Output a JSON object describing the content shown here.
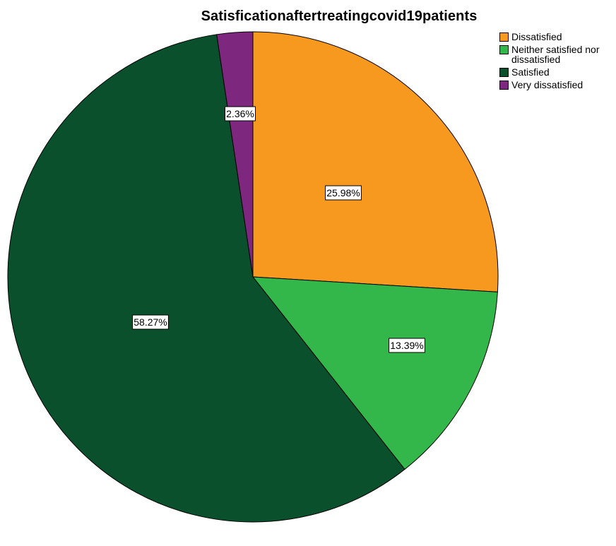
{
  "chart_data": {
    "type": "pie",
    "title": "Satisficationaftertreatingcovid19patients",
    "legend_position": "top-right",
    "slices": [
      {
        "name": "Dissatisfied",
        "value": 25.98,
        "label": "25.98%",
        "color": "#f7991e"
      },
      {
        "name": "Neither satisfied nor dissatisfied",
        "value": 13.39,
        "label": "13.39%",
        "color": "#33b74a"
      },
      {
        "name": "Satisfied",
        "value": 58.27,
        "label": "58.27%",
        "color": "#0a502c"
      },
      {
        "name": "Very dissatisfied",
        "value": 2.36,
        "label": "2.36%",
        "color": "#7d287e"
      }
    ]
  }
}
